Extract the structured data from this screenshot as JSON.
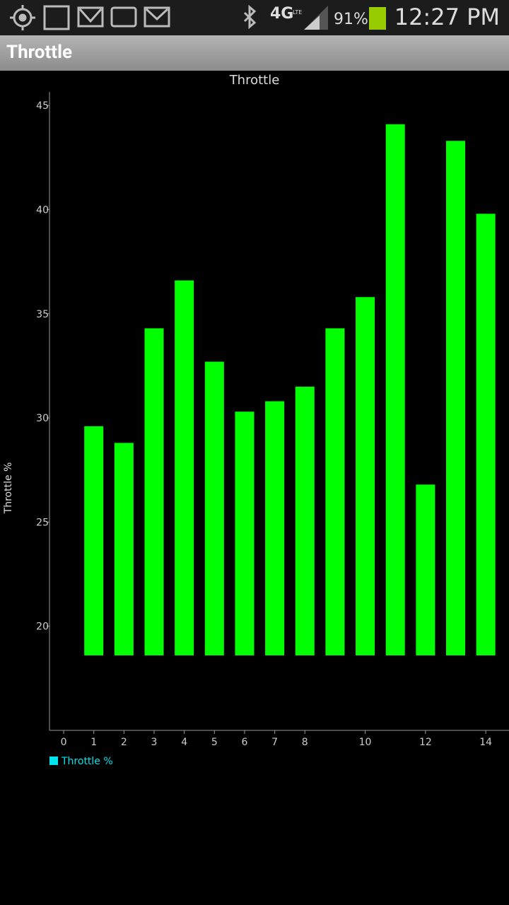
{
  "status_bar": {
    "network": "4G",
    "network_sub": "LTE",
    "battery": "91%",
    "time": "12:27 PM"
  },
  "app_bar": {
    "title": "Throttle"
  },
  "chart_data": {
    "type": "bar",
    "title": "Throttle",
    "y_label": "Throttle %",
    "x": [
      1,
      2,
      3,
      4,
      5,
      6,
      7,
      8,
      9,
      10,
      11,
      12,
      13,
      14
    ],
    "series": [
      {
        "name": "Throttle %",
        "color": "#00ff00",
        "legend_color": "#00e5ee",
        "values": [
          29.6,
          28.8,
          34.3,
          36.6,
          32.7,
          30.3,
          30.8,
          31.5,
          34.3,
          35.8,
          44.1,
          26.8,
          43.3,
          39.8
        ]
      }
    ],
    "bar_base": 18.6,
    "xlim": [
      -0.47,
      14.77
    ],
    "xticks": [
      0,
      1,
      2,
      3,
      4,
      5,
      6,
      7,
      8,
      10,
      12,
      14
    ],
    "ylim": [
      15,
      45.65
    ],
    "yticks": [
      20,
      25,
      30,
      35,
      40,
      45
    ]
  }
}
